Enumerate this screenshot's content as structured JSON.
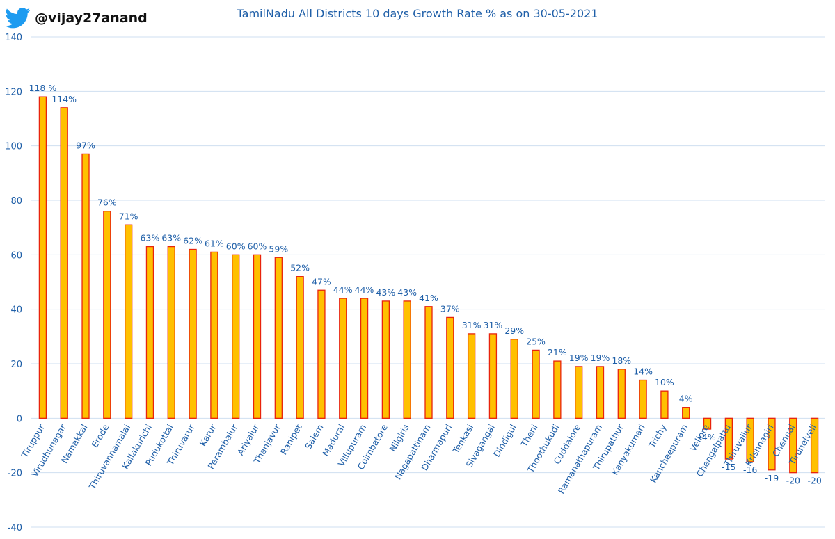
{
  "header": {
    "handle": "@vijay27anand",
    "brand_icon": "twitter-bird-icon"
  },
  "colors": {
    "bar_fill": "#ffc000",
    "bar_stroke": "#e8240c",
    "text": "#1f5fa8",
    "grid": "#cfdff0"
  },
  "chart_data": {
    "type": "bar",
    "title": "TamilNadu All Districts 10 days Growth Rate % as on 30-05-2021",
    "xlabel": "",
    "ylabel": "",
    "ylim": [
      -40,
      140
    ],
    "yticks": [
      -40,
      -20,
      0,
      20,
      40,
      60,
      80,
      100,
      120,
      140
    ],
    "grid": true,
    "legend": "none",
    "categories": [
      "Tiruppur",
      "Virudhunagar",
      "Namakkal",
      "Erode",
      "Thiruvannamalai",
      "Kallakurichi",
      "Pudukottai",
      "Thiruvarur",
      "Karur",
      "Perambalur",
      "Ariyalur",
      "Thanjavur",
      "Ranipet",
      "Salem",
      "Madurai",
      "Villupuram",
      "Coimbatore",
      "Nilgiris",
      "Nagapattinam",
      "Dharmapuri",
      "Tenkasi",
      "Sivagangai",
      "Dindigul",
      "Theni",
      "Thoothukudi",
      "Cuddalore",
      "Ramanathapuram",
      "Thirupathur",
      "Kanyakumari",
      "Trichy",
      "Kancheepuram",
      "Vellore",
      "Chengalpattu",
      "Thiruvallur",
      "Krishnagiri",
      "Chennai",
      "Tirunelveli"
    ],
    "values": [
      118,
      114,
      97,
      76,
      71,
      63,
      63,
      62,
      61,
      60,
      60,
      59,
      52,
      47,
      44,
      44,
      43,
      43,
      41,
      37,
      31,
      31,
      29,
      25,
      21,
      19,
      19,
      18,
      14,
      10,
      4,
      -4,
      -15,
      -16,
      -19,
      -20,
      -20
    ],
    "data_labels": [
      "118 %",
      "114%",
      "97%",
      "76%",
      "71%",
      "63%",
      "63%",
      "62%",
      "61%",
      "60%",
      "60%",
      "59%",
      "52%",
      "47%",
      "44%",
      "44%",
      "43%",
      "43%",
      "41%",
      "37%",
      "31%",
      "31%",
      "29%",
      "25%",
      "21%",
      "19%",
      "19%",
      "18%",
      "14%",
      "10%",
      "4%",
      "-4%",
      "-15",
      "-16",
      "-19",
      "-20",
      "-20"
    ]
  }
}
